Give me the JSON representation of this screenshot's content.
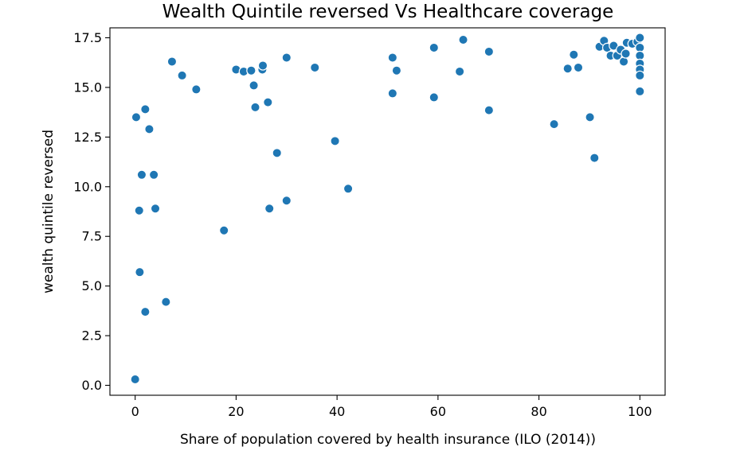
{
  "chart_data": {
    "type": "scatter",
    "title": "Wealth Quintile reversed Vs Healthcare coverage",
    "xlabel": "Share of population covered by health insurance (ILO (2014))",
    "ylabel": "wealth quintile reversed",
    "xlim": [
      -5,
      105
    ],
    "ylim": [
      -0.5,
      18.0
    ],
    "xticks": [
      0,
      20,
      40,
      60,
      80,
      100
    ],
    "xtick_labels": [
      "0",
      "20",
      "40",
      "60",
      "80",
      "100"
    ],
    "yticks": [
      0.0,
      2.5,
      5.0,
      7.5,
      10.0,
      12.5,
      15.0,
      17.5
    ],
    "ytick_labels": [
      "0.0",
      "2.5",
      "5.0",
      "7.5",
      "10.0",
      "12.5",
      "15.0",
      "17.5"
    ],
    "grid": false,
    "legend": false,
    "color": "#1f77b4",
    "series": [
      {
        "points": [
          [
            0.0,
            0.3
          ],
          [
            0.2,
            13.5
          ],
          [
            0.8,
            8.8
          ],
          [
            0.9,
            5.7
          ],
          [
            1.3,
            10.6
          ],
          [
            2.0,
            13.9
          ],
          [
            2.0,
            3.7
          ],
          [
            2.8,
            12.9
          ],
          [
            3.7,
            10.6
          ],
          [
            4.0,
            8.9
          ],
          [
            6.1,
            4.2
          ],
          [
            7.3,
            16.3
          ],
          [
            9.3,
            15.6
          ],
          [
            12.1,
            14.9
          ],
          [
            17.6,
            7.8
          ],
          [
            20.0,
            15.9
          ],
          [
            21.5,
            15.8
          ],
          [
            23.0,
            15.85
          ],
          [
            23.5,
            15.1
          ],
          [
            23.8,
            14.0
          ],
          [
            25.2,
            15.9
          ],
          [
            25.3,
            16.1
          ],
          [
            26.3,
            14.25
          ],
          [
            26.6,
            8.9
          ],
          [
            28.1,
            11.7
          ],
          [
            30.0,
            16.5
          ],
          [
            30.0,
            9.3
          ],
          [
            35.6,
            16.0
          ],
          [
            39.6,
            12.3
          ],
          [
            42.2,
            9.9
          ],
          [
            51.0,
            16.5
          ],
          [
            51.0,
            14.7
          ],
          [
            51.8,
            15.85
          ],
          [
            59.2,
            17.0
          ],
          [
            59.2,
            14.5
          ],
          [
            64.3,
            15.8
          ],
          [
            65.0,
            17.4
          ],
          [
            70.1,
            16.8
          ],
          [
            70.1,
            13.85
          ],
          [
            83.0,
            13.15
          ],
          [
            85.7,
            15.95
          ],
          [
            86.9,
            16.65
          ],
          [
            87.8,
            16.0
          ],
          [
            90.1,
            13.5
          ],
          [
            91.0,
            11.45
          ],
          [
            92.0,
            17.05
          ],
          [
            92.9,
            17.35
          ],
          [
            93.5,
            17.0
          ],
          [
            94.2,
            16.6
          ],
          [
            94.8,
            17.1
          ],
          [
            95.5,
            16.6
          ],
          [
            96.2,
            16.9
          ],
          [
            96.8,
            16.3
          ],
          [
            97.2,
            16.7
          ],
          [
            97.4,
            17.25
          ],
          [
            98.5,
            17.2
          ],
          [
            99.5,
            17.3
          ],
          [
            100.0,
            17.5
          ],
          [
            100.0,
            17.0
          ],
          [
            100.0,
            16.6
          ],
          [
            100.0,
            16.2
          ],
          [
            100.0,
            15.9
          ],
          [
            100.0,
            15.6
          ],
          [
            100.0,
            14.8
          ]
        ]
      }
    ]
  }
}
